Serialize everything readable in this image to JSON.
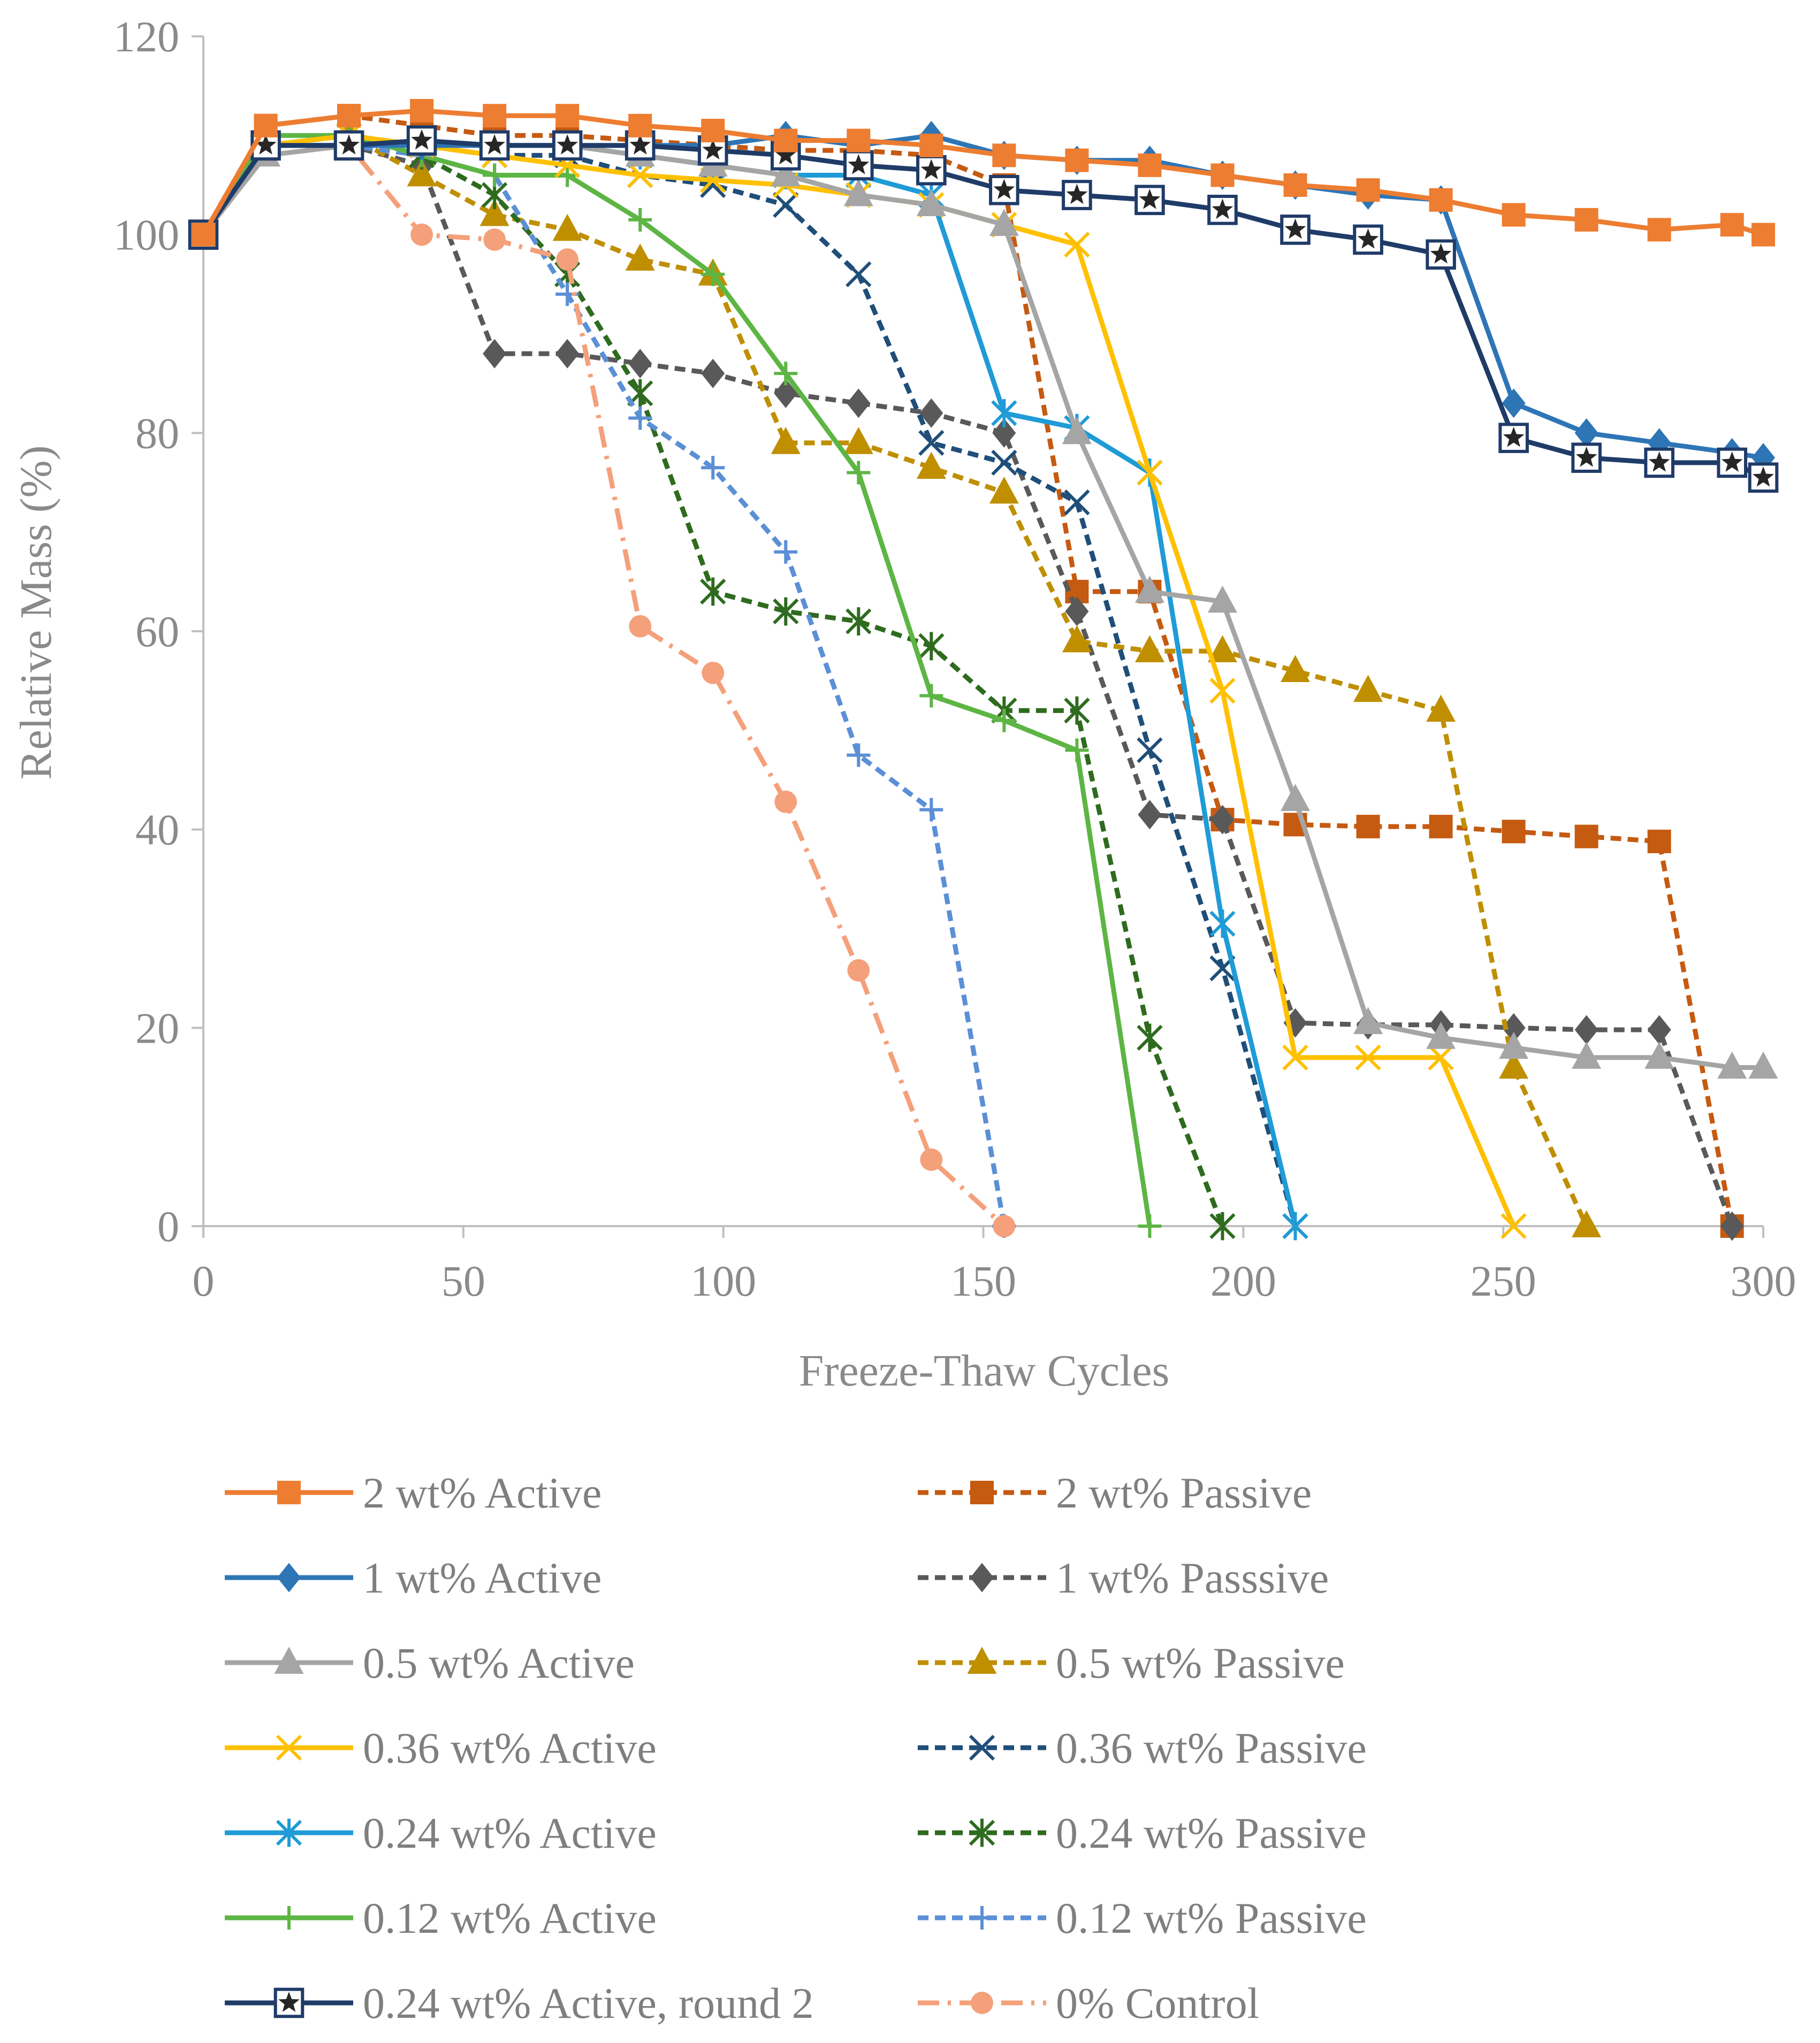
{
  "chart_data": {
    "type": "line",
    "title": "",
    "xlabel": "Freeze-Thaw Cycles",
    "ylabel": "Relative  Mass (%)",
    "xlim": [
      0,
      300
    ],
    "ylim": [
      0,
      120
    ],
    "xticks": [
      "0",
      "50",
      "100",
      "150",
      "200",
      "250",
      "300"
    ],
    "yticks": [
      "0",
      "20",
      "40",
      "60",
      "80",
      "100",
      "120"
    ],
    "grid": false,
    "legend_position": "bottom",
    "series": [
      {
        "name": "2 wt% Active",
        "color": "#ED7D31",
        "dash": "solid",
        "marker": "square",
        "x": [
          0,
          12,
          28,
          42,
          56,
          70,
          84,
          98,
          112,
          126,
          140,
          154,
          168,
          182,
          196,
          210,
          224,
          238,
          252,
          266,
          280,
          294,
          300
        ],
        "y": [
          100,
          111,
          112,
          112.5,
          112,
          112,
          111,
          110.5,
          109.5,
          109.5,
          109,
          108,
          107.5,
          107,
          106,
          105,
          104.5,
          103.5,
          102,
          101.5,
          100.5,
          101,
          100
        ]
      },
      {
        "name": "2 wt% Passive",
        "color": "#C55A11",
        "dash": "short",
        "marker": "square",
        "x": [
          0,
          12,
          28,
          42,
          56,
          70,
          84,
          98,
          112,
          126,
          140,
          154,
          168,
          182,
          196,
          210,
          224,
          238,
          252,
          266,
          280,
          294
        ],
        "y": [
          100,
          111,
          112,
          111,
          110,
          110,
          109.5,
          109,
          108.5,
          108.5,
          108,
          105,
          64,
          64,
          41,
          40.5,
          40.3,
          40.3,
          39.8,
          39.3,
          38.8,
          0
        ]
      },
      {
        "name": "1 wt% Active",
        "color": "#2E75B6",
        "dash": "solid",
        "marker": "diamond",
        "x": [
          0,
          12,
          28,
          42,
          56,
          70,
          84,
          98,
          112,
          126,
          140,
          154,
          168,
          182,
          196,
          210,
          224,
          238,
          252,
          266,
          280,
          294,
          300
        ],
        "y": [
          100,
          109,
          109,
          109,
          109,
          109,
          109,
          109,
          110,
          109,
          110,
          108,
          107.5,
          107.5,
          106,
          105,
          104,
          103.5,
          83,
          80,
          79,
          78,
          77.5
        ]
      },
      {
        "name": "1 wt% Passsive",
        "color": "#595959",
        "dash": "short",
        "marker": "diamond",
        "x": [
          0,
          12,
          28,
          42,
          56,
          70,
          84,
          98,
          112,
          126,
          140,
          154,
          168,
          182,
          196,
          210,
          224,
          238,
          252,
          266,
          280,
          294
        ],
        "y": [
          100,
          109,
          109,
          107,
          88,
          88,
          87,
          86,
          84,
          83,
          82,
          80,
          62,
          41.5,
          41,
          20.5,
          20.3,
          20.3,
          20,
          19.8,
          19.8,
          0
        ]
      },
      {
        "name": "0.5 wt% Active",
        "color": "#A5A5A5",
        "dash": "solid",
        "marker": "triangle",
        "x": [
          0,
          12,
          28,
          42,
          56,
          70,
          84,
          98,
          112,
          126,
          140,
          154,
          168,
          182,
          196,
          210,
          224,
          238,
          252,
          266,
          280,
          294,
          300
        ],
        "y": [
          100,
          108,
          109,
          109,
          109,
          109,
          108,
          107,
          106,
          104,
          103,
          101,
          80,
          64,
          63,
          43,
          20.5,
          19,
          18,
          17,
          17,
          16,
          16
        ]
      },
      {
        "name": "0.5 wt% Passive",
        "color": "#BF8F00",
        "dash": "short",
        "marker": "triangle",
        "x": [
          0,
          12,
          28,
          42,
          56,
          70,
          84,
          98,
          112,
          126,
          140,
          154,
          168,
          182,
          196,
          210,
          224,
          238,
          252,
          266
        ],
        "y": [
          100,
          109,
          110,
          106,
          102,
          100.5,
          97.5,
          96,
          79,
          79,
          76.5,
          74,
          59,
          58,
          58,
          56,
          54,
          52,
          16,
          0
        ]
      },
      {
        "name": "0.36 wt% Active",
        "color": "#FFC000",
        "dash": "solid",
        "marker": "x",
        "x": [
          0,
          12,
          28,
          42,
          56,
          70,
          84,
          98,
          112,
          126,
          140,
          154,
          168,
          182,
          196,
          210,
          224,
          238,
          252
        ],
        "y": [
          100,
          109,
          110,
          109,
          108,
          107,
          106,
          105.5,
          105,
          104,
          103,
          101,
          99,
          76,
          54,
          17,
          17,
          17,
          0
        ]
      },
      {
        "name": "0.36 wt% Passive",
        "color": "#1F4E79",
        "dash": "short",
        "marker": "x",
        "x": [
          0,
          12,
          28,
          42,
          56,
          70,
          84,
          98,
          112,
          126,
          140,
          154,
          168,
          182,
          196,
          210
        ],
        "y": [
          100,
          109,
          110,
          109,
          108,
          108,
          106,
          105,
          103,
          96,
          79,
          77,
          73,
          48,
          26,
          0
        ]
      },
      {
        "name": "0.24 wt% Active",
        "color": "#1F9BD7",
        "dash": "solid",
        "marker": "asterisk",
        "x": [
          0,
          12,
          28,
          42,
          56,
          70,
          84,
          98,
          112,
          126,
          140,
          154,
          168,
          182,
          196,
          210
        ],
        "y": [
          100,
          109,
          109,
          109,
          109,
          109,
          108,
          107,
          106,
          106,
          104,
          82,
          80.5,
          76,
          30.5,
          0
        ]
      },
      {
        "name": "0.24 wt% Passive",
        "color": "#2E6B1E",
        "dash": "short",
        "marker": "asterisk",
        "x": [
          0,
          12,
          28,
          42,
          56,
          70,
          84,
          98,
          112,
          126,
          140,
          154,
          168,
          182,
          196
        ],
        "y": [
          100,
          109,
          110,
          108,
          104,
          96,
          84,
          64,
          62,
          61,
          58.5,
          52,
          52,
          19,
          0
        ]
      },
      {
        "name": "0.12 wt% Active",
        "color": "#5DB544",
        "dash": "solid",
        "marker": "plus",
        "x": [
          0,
          12,
          28,
          42,
          56,
          70,
          84,
          98,
          112,
          126,
          140,
          154,
          168,
          182
        ],
        "y": [
          100,
          110,
          110,
          108,
          106,
          106,
          101.5,
          96,
          86,
          76,
          53.5,
          51,
          48,
          0
        ]
      },
      {
        "name": "0.12 wt% Passive",
        "color": "#5B8FD6",
        "dash": "short",
        "marker": "plus",
        "x": [
          0,
          12,
          28,
          42,
          56,
          70,
          84,
          98,
          112,
          126,
          140,
          154
        ],
        "y": [
          100,
          109,
          109,
          108,
          106,
          94,
          81.5,
          76.5,
          68,
          47.5,
          42,
          0
        ]
      },
      {
        "name": "0.24 wt% Active, round 2",
        "color": "#1F3B68",
        "dash": "solid",
        "marker": "boxstar",
        "x": [
          0,
          12,
          28,
          42,
          56,
          70,
          84,
          98,
          112,
          126,
          140,
          154,
          168,
          182,
          196,
          210,
          224,
          238,
          252,
          266,
          280,
          294,
          300
        ],
        "y": [
          100,
          109,
          109,
          109.5,
          109,
          109,
          109,
          108.5,
          108,
          107,
          106.5,
          104.5,
          104,
          103.5,
          102.5,
          100.5,
          99.5,
          98,
          79.5,
          77.5,
          77,
          77,
          75.5
        ]
      },
      {
        "name": "0% Control",
        "color": "#F4A07A",
        "dash": "dashdot",
        "marker": "circle",
        "x": [
          0,
          12,
          28,
          42,
          56,
          70,
          84,
          98,
          112,
          126,
          140,
          154
        ],
        "y": [
          100,
          109,
          109,
          100,
          99.5,
          97.5,
          60.5,
          55.8,
          42.8,
          25.8,
          6.7,
          0
        ]
      }
    ]
  }
}
